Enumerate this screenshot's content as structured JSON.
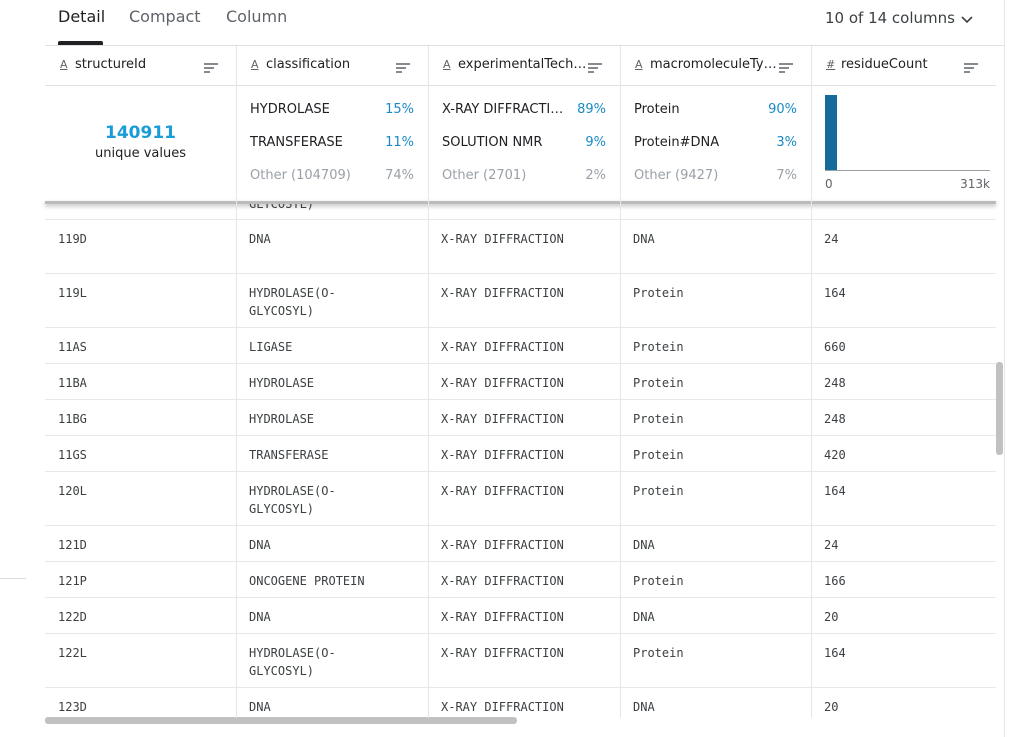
{
  "tabs": [
    "Detail",
    "Compact",
    "Column"
  ],
  "column_count": "10 of 14 columns",
  "columns": [
    {
      "icon": "A",
      "name": "structureId",
      "summary": {
        "unique_count": "140911",
        "unique_label": "unique values"
      }
    },
    {
      "icon": "A",
      "name": "classification",
      "summary": {
        "top": [
          {
            "label": "HYDROLASE",
            "percent": "15%"
          },
          {
            "label": "TRANSFERASE",
            "percent": "11%"
          }
        ],
        "other": {
          "label": "Other (104709)",
          "percent": "74%"
        }
      }
    },
    {
      "icon": "A",
      "name": "experimentalTech…",
      "summary": {
        "top": [
          {
            "label": "X-RAY DIFFRACTI…",
            "percent": "89%"
          },
          {
            "label": "SOLUTION NMR",
            "percent": "9%"
          }
        ],
        "other": {
          "label": "Other (2701)",
          "percent": "2%"
        }
      }
    },
    {
      "icon": "A",
      "name": "macromoleculeTy…",
      "summary": {
        "top": [
          {
            "label": "Protein",
            "percent": "90%"
          },
          {
            "label": "Protein#DNA",
            "percent": "3%"
          }
        ],
        "other": {
          "label": "Other (9427)",
          "percent": "7%"
        }
      }
    },
    {
      "icon": "#",
      "name": "residueCount",
      "summary": {
        "histogram": {
          "counts": [
            100,
            0,
            0,
            0,
            0,
            0,
            0,
            0,
            0,
            0,
            0,
            0,
            0,
            0
          ],
          "min_label": "0",
          "max_label": "313k"
        }
      }
    }
  ],
  "clipped_text": "GLYCOSYL)",
  "rows": [
    [
      "119D",
      "DNA",
      "X-RAY DIFFRACTION",
      "DNA",
      24
    ],
    [
      "119L",
      [
        "HYDROLASE(O-",
        "GLYCOSYL)"
      ],
      "X-RAY DIFFRACTION",
      "Protein",
      164
    ],
    [
      "11AS",
      "LIGASE",
      "X-RAY DIFFRACTION",
      "Protein",
      660
    ],
    [
      "11BA",
      "HYDROLASE",
      "X-RAY DIFFRACTION",
      "Protein",
      248
    ],
    [
      "11BG",
      "HYDROLASE",
      "X-RAY DIFFRACTION",
      "Protein",
      248
    ],
    [
      "11GS",
      "TRANSFERASE",
      "X-RAY DIFFRACTION",
      "Protein",
      420
    ],
    [
      "120L",
      [
        "HYDROLASE(O-",
        "GLYCOSYL)"
      ],
      "X-RAY DIFFRACTION",
      "Protein",
      164
    ],
    [
      "121D",
      "DNA",
      "X-RAY DIFFRACTION",
      "DNA",
      24
    ],
    [
      "121P",
      "ONCOGENE PROTEIN",
      "X-RAY DIFFRACTION",
      "Protein",
      166
    ],
    [
      "122D",
      "DNA",
      "X-RAY DIFFRACTION",
      "DNA",
      20
    ],
    [
      "122L",
      [
        "HYDROLASE(O-",
        "GLYCOSYL)"
      ],
      "X-RAY DIFFRACTION",
      "Protein",
      164
    ],
    [
      "123D",
      "DNA",
      "X-RAY DIFFRACTION",
      "DNA",
      20
    ]
  ]
}
